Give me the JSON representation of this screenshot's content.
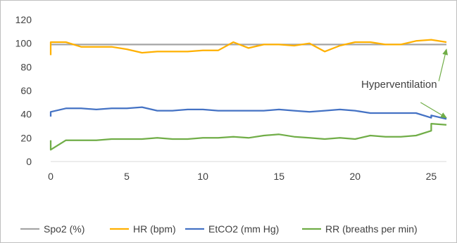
{
  "chart_data": {
    "type": "line",
    "title": "",
    "xlabel": "",
    "ylabel": "",
    "xlim": [
      0,
      26
    ],
    "ylim": [
      0,
      120
    ],
    "x_ticks": [
      0,
      5,
      10,
      15,
      20,
      25
    ],
    "y_ticks": [
      0,
      20,
      40,
      60,
      80,
      100,
      120
    ],
    "grid": false,
    "legend_position": "bottom",
    "series": [
      {
        "name": "Spo2 (%)",
        "color": "#a5a5a5",
        "points": [
          [
            0,
            99
          ],
          [
            26,
            99
          ]
        ]
      },
      {
        "name": "HR (bpm)",
        "color": "#ffb000",
        "points": [
          [
            0,
            90
          ],
          [
            0,
            101
          ],
          [
            1,
            101
          ],
          [
            2,
            97
          ],
          [
            3,
            97
          ],
          [
            4,
            97
          ],
          [
            5,
            95
          ],
          [
            6,
            92
          ],
          [
            7,
            93
          ],
          [
            8,
            93
          ],
          [
            9,
            93
          ],
          [
            10,
            94
          ],
          [
            11,
            94
          ],
          [
            12,
            101
          ],
          [
            13,
            96
          ],
          [
            14,
            99
          ],
          [
            15,
            99
          ],
          [
            16,
            98
          ],
          [
            17,
            100
          ],
          [
            18,
            93
          ],
          [
            19,
            98
          ],
          [
            20,
            101
          ],
          [
            21,
            101
          ],
          [
            22,
            99
          ],
          [
            23,
            99
          ],
          [
            24,
            102
          ],
          [
            25,
            103
          ],
          [
            26,
            101
          ]
        ]
      },
      {
        "name": "EtCO2 (mm Hg)",
        "color": "#4472c4",
        "points": [
          [
            0,
            38
          ],
          [
            0,
            42
          ],
          [
            1,
            45
          ],
          [
            2,
            45
          ],
          [
            3,
            44
          ],
          [
            4,
            45
          ],
          [
            5,
            45
          ],
          [
            6,
            46
          ],
          [
            7,
            43
          ],
          [
            8,
            43
          ],
          [
            9,
            44
          ],
          [
            10,
            44
          ],
          [
            11,
            43
          ],
          [
            12,
            43
          ],
          [
            13,
            43
          ],
          [
            14,
            43
          ],
          [
            15,
            44
          ],
          [
            16,
            43
          ],
          [
            17,
            42
          ],
          [
            18,
            43
          ],
          [
            19,
            44
          ],
          [
            20,
            43
          ],
          [
            21,
            41
          ],
          [
            22,
            41
          ],
          [
            23,
            41
          ],
          [
            24,
            41
          ],
          [
            25,
            37
          ],
          [
            25,
            39
          ],
          [
            26,
            36
          ]
        ]
      },
      {
        "name": "RR (breaths per min)",
        "color": "#70ad47",
        "points": [
          [
            0,
            18
          ],
          [
            0,
            10
          ],
          [
            1,
            18
          ],
          [
            2,
            18
          ],
          [
            3,
            18
          ],
          [
            4,
            19
          ],
          [
            5,
            19
          ],
          [
            6,
            19
          ],
          [
            7,
            20
          ],
          [
            8,
            19
          ],
          [
            9,
            19
          ],
          [
            10,
            20
          ],
          [
            11,
            20
          ],
          [
            12,
            21
          ],
          [
            13,
            20
          ],
          [
            14,
            22
          ],
          [
            15,
            23
          ],
          [
            16,
            21
          ],
          [
            17,
            20
          ],
          [
            18,
            19
          ],
          [
            19,
            20
          ],
          [
            20,
            19
          ],
          [
            21,
            22
          ],
          [
            22,
            21
          ],
          [
            23,
            21
          ],
          [
            24,
            22
          ],
          [
            25,
            26
          ],
          [
            25,
            32
          ],
          [
            26,
            31
          ]
        ]
      }
    ],
    "annotations": [
      {
        "text": "Hyperventilation",
        "arrows": [
          {
            "from": [
              25.5,
              68
            ],
            "to": [
              26,
              95
            ]
          },
          {
            "from": [
              24.3,
              50
            ],
            "to": [
              26,
              37
            ]
          }
        ]
      }
    ]
  }
}
